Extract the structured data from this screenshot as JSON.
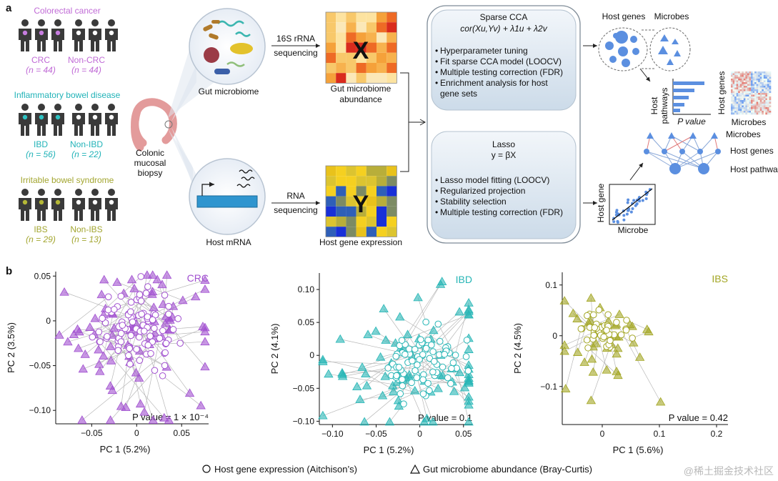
{
  "panel_a": {
    "label": "a",
    "groups": [
      {
        "title": "Colorectal cancer",
        "case": "CRC",
        "case_n": "(n = 44)",
        "control": "Non-CRC",
        "control_n": "(n = 44)",
        "color": "#c06bd6",
        "dot": "#c77de0"
      },
      {
        "title": "Inflammatory bowel disease",
        "case": "IBD",
        "case_n": "(n = 56)",
        "control": "Non-IBD",
        "control_n": "(n = 22)",
        "color": "#22b3b8",
        "dot": "#2ec4c4"
      },
      {
        "title": "Irritable bowel syndrome",
        "case": "IBS",
        "case_n": "(n = 29)",
        "control": "Non-IBS",
        "control_n": "(n = 13)",
        "color": "#a3a630",
        "dot": "#b5b836"
      }
    ],
    "biopsy": [
      "Colonic",
      "mucosal",
      "biopsy"
    ],
    "gut_microbiome": "Gut microbiome",
    "host_mrna": "Host mRNA",
    "seq1": [
      "16S rRNA",
      "sequencing"
    ],
    "seq2": [
      "RNA",
      "sequencing"
    ],
    "matrix_x": {
      "letter": "X",
      "caption": [
        "Gut microbiome",
        "abundance"
      ]
    },
    "matrix_y": {
      "letter": "Y",
      "caption": [
        "Host gene expression"
      ]
    },
    "scca": {
      "title": "Sparse CCA",
      "formula": "cor(Xu,Yv) + λ1u + λ2v",
      "bullets": [
        "Hyperparameter tuning",
        "Fit sparse CCA model (LOOCV)",
        "Multiple testing correction (FDR)",
        "Enrichment analysis for host",
        "gene sets"
      ]
    },
    "lasso": {
      "title": "Lasso",
      "formula": "y = βX",
      "bullets": [
        "Lasso model fitting (LOOCV)",
        "Regularized projection",
        "Stability selection",
        "Multiple testing correction (FDR)"
      ]
    },
    "right": {
      "host_genes": "Host genes",
      "microbes": "Microbes",
      "host_pathways": [
        "Host",
        "pathways"
      ],
      "p_value": "P value",
      "heatmap_y": "Host genes",
      "heatmap_x": "Microbes",
      "net_microbes": "Microbes",
      "net_host_genes": "Host genes",
      "net_host_pathways": "Host pathways",
      "scatter_y": "Host gene",
      "scatter_x": "Microbe"
    },
    "colors": {
      "blue": "#5b8fe0",
      "box": "#dde8f3",
      "box_stroke": "#9aa9b6",
      "arrow": "#222222"
    }
  },
  "panel_b": {
    "label": "b",
    "legend": {
      "circle": "Host gene expression (Aitchison’s)",
      "triangle": "Gut microbiome abundance (Bray-Curtis)"
    },
    "watermark": "@稀土掘金技术社区"
  },
  "chart_data": [
    {
      "type": "scatter",
      "title": "CRC",
      "color": "#a150d0",
      "xlabel": "PC 1 (5.2%)",
      "ylabel": "PC 2 (3.5%)",
      "xlim": [
        -0.09,
        0.08
      ],
      "ylim": [
        -0.115,
        0.055
      ],
      "xticks": [
        -0.05,
        0,
        0.05
      ],
      "xticklabels": [
        "-0.05",
        "0",
        "0.05"
      ],
      "yticks": [
        0.05,
        0,
        -0.05,
        -0.1
      ],
      "yticklabels": [
        "0.05",
        "0",
        "-0.05",
        "-0.10"
      ],
      "pvalue": "P value = 1 × 10⁻⁴",
      "circle_center": [
        0.0,
        -0.005
      ],
      "circle_spread": [
        0.022,
        0.02
      ],
      "triangle_spread": [
        0.04,
        0.035
      ],
      "n_pairs": 88,
      "seed": 11
    },
    {
      "type": "scatter",
      "title": "IBD",
      "color": "#27b6b6",
      "xlabel": "PC 1 (5.2%)",
      "ylabel": "PC 2 (4.1%)",
      "xlim": [
        -0.115,
        0.06
      ],
      "ylim": [
        -0.105,
        0.125
      ],
      "xticks": [
        -0.1,
        -0.05,
        0,
        0.05
      ],
      "xticklabels": [
        "-0.10",
        "-0.05",
        "0",
        "0.05"
      ],
      "yticks": [
        0.1,
        0.05,
        0,
        -0.05,
        -0.1
      ],
      "yticklabels": [
        "0.10",
        "0.05",
        "0",
        "-0.05",
        "-0.10"
      ],
      "pvalue": "P value = 0.1",
      "circle_center": [
        0.0,
        -0.01
      ],
      "circle_spread": [
        0.022,
        0.025
      ],
      "triangle_spread": [
        0.045,
        0.04
      ],
      "n_pairs": 78,
      "seed": 23
    },
    {
      "type": "scatter",
      "title": "IBS",
      "color": "#a3a624",
      "xlabel": "PC 1 (5.6%)",
      "ylabel": "PC 2 (4.5%)",
      "xlim": [
        -0.07,
        0.22
      ],
      "ylim": [
        -0.175,
        0.125
      ],
      "xticks": [
        0,
        0.1,
        0.2
      ],
      "xticklabels": [
        "0",
        "0.1",
        "0.2"
      ],
      "yticks": [
        0.1,
        0,
        -0.1
      ],
      "yticklabels": [
        "0.1",
        "0",
        "-0.1"
      ],
      "pvalue": "P value = 0.42",
      "circle_center": [
        0.0,
        0.005
      ],
      "circle_spread": [
        0.02,
        0.02
      ],
      "triangle_spread": [
        0.03,
        0.045
      ],
      "n_pairs": 42,
      "seed": 37
    }
  ]
}
